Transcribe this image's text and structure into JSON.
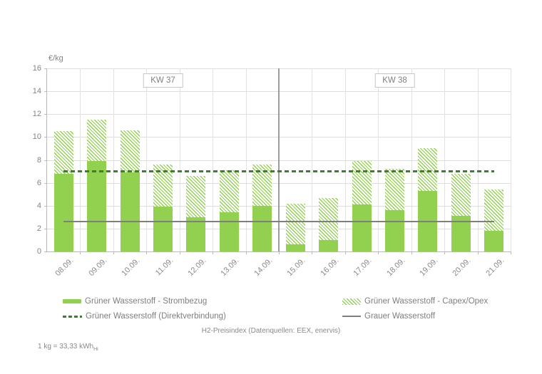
{
  "page": {
    "background": "#ffffff"
  },
  "chart_data": {
    "type": "bar",
    "stacked": true,
    "title": "",
    "ylabel": "€/kg",
    "xlabel": "",
    "ylim": [
      0,
      16
    ],
    "ytick_step": 2,
    "grid": true,
    "categories": [
      "08.09.",
      "09.09.",
      "10.09.",
      "11.09.",
      "12.09.",
      "13.09.",
      "14.09.",
      "15.09.",
      "16.09.",
      "17.09.",
      "18.09.",
      "19.09.",
      "20.09.",
      "21.09."
    ],
    "series": [
      {
        "name": "Grüner Wasserstoff - Strombezug",
        "type": "bar",
        "pattern": "solid",
        "color": "#92d050",
        "values": [
          6.8,
          7.9,
          6.9,
          3.9,
          3.0,
          3.4,
          4.0,
          0.6,
          1.0,
          4.1,
          3.6,
          5.3,
          3.1,
          1.8
        ]
      },
      {
        "name": "Grüner Wasserstoff - Capex/Opex",
        "type": "bar",
        "pattern": "hatch",
        "color": "#92d050",
        "values": [
          3.7,
          3.6,
          3.7,
          3.7,
          3.6,
          3.7,
          3.6,
          3.6,
          3.7,
          3.8,
          3.6,
          3.7,
          3.7,
          3.6
        ]
      },
      {
        "name": "Grüner Wasserstoff (Direktverbindung)",
        "type": "line",
        "style": "dashed",
        "color": "#3e7e33",
        "values": [
          7.0,
          7.0,
          7.0,
          7.0,
          7.0,
          7.0,
          7.0,
          7.0,
          7.0,
          7.0,
          7.0,
          7.0,
          7.0,
          7.0
        ]
      },
      {
        "name": "Grauer Wasserstoff",
        "type": "line",
        "style": "solid",
        "color": "#7f7f7f",
        "values": [
          2.6,
          2.6,
          2.6,
          2.6,
          2.6,
          2.6,
          2.6,
          2.6,
          2.6,
          2.6,
          2.6,
          2.6,
          2.6,
          2.6
        ]
      }
    ],
    "annotations": [
      {
        "label": "KW 37",
        "center_cell": 3.5
      },
      {
        "label": "KW 38",
        "center_cell": 10.5
      }
    ],
    "week_divider_after_index": 6,
    "legend_position": "bottom"
  },
  "legend": {
    "items": [
      {
        "label": "Grüner Wasserstoff - Strombezug",
        "swatch": "solid-bar"
      },
      {
        "label": "Grüner Wasserstoff - Capex/Opex",
        "swatch": "hatch-bar"
      },
      {
        "label": "Grüner Wasserstoff (Direktverbindung)",
        "swatch": "dashed-line"
      },
      {
        "label": "Grauer Wasserstoff",
        "swatch": "grey-line"
      }
    ]
  },
  "caption": "H2-Preisindex (Datenquellen: EEX, enervis)",
  "footnote": {
    "text": "1 kg = 33,33 kWh",
    "subscript": "Hi"
  },
  "colors": {
    "bar_green": "#92d050",
    "dashed_green": "#3e7e33",
    "grey_line": "#7f7f7f",
    "grid": "#dedede",
    "text": "#848484"
  }
}
